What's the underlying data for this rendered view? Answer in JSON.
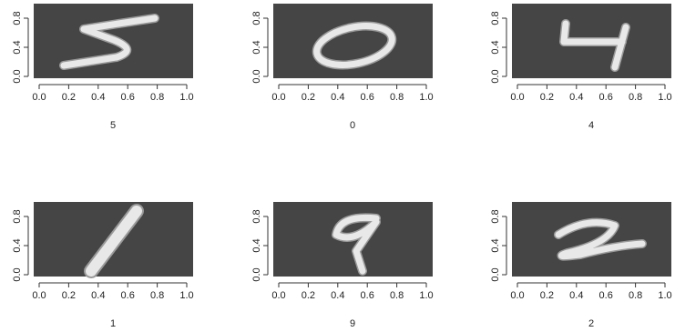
{
  "chart_data": [
    {
      "type": "image",
      "xlabel": "5",
      "xlim": [
        0,
        1
      ],
      "ylim": [
        0,
        1
      ],
      "xticks": [
        {
          "value": 0,
          "label": "0.0"
        },
        {
          "value": 0.2,
          "label": "0.2"
        },
        {
          "value": 0.4,
          "label": "0.4"
        },
        {
          "value": 0.6,
          "label": "0.6"
        },
        {
          "value": 0.8,
          "label": "0.8"
        },
        {
          "value": 1,
          "label": "1.0"
        }
      ],
      "yticks": [
        {
          "value": 0,
          "label": "0.0"
        },
        {
          "value": 0.4,
          "label": "0.4"
        },
        {
          "value": 0.8,
          "label": "0.8"
        }
      ]
    },
    {
      "type": "image",
      "xlabel": "0",
      "xlim": [
        0,
        1
      ],
      "ylim": [
        0,
        1
      ],
      "xticks": [
        {
          "value": 0,
          "label": "0.0"
        },
        {
          "value": 0.2,
          "label": "0.2"
        },
        {
          "value": 0.4,
          "label": "0.4"
        },
        {
          "value": 0.6,
          "label": "0.6"
        },
        {
          "value": 0.8,
          "label": "0.8"
        },
        {
          "value": 1,
          "label": "1.0"
        }
      ],
      "yticks": [
        {
          "value": 0,
          "label": "0.0"
        },
        {
          "value": 0.4,
          "label": "0.4"
        },
        {
          "value": 0.8,
          "label": "0.8"
        }
      ]
    },
    {
      "type": "image",
      "xlabel": "4",
      "xlim": [
        0,
        1
      ],
      "ylim": [
        0,
        1
      ],
      "xticks": [
        {
          "value": 0,
          "label": "0.0"
        },
        {
          "value": 0.2,
          "label": "0.2"
        },
        {
          "value": 0.4,
          "label": "0.4"
        },
        {
          "value": 0.6,
          "label": "0.6"
        },
        {
          "value": 0.8,
          "label": "0.8"
        },
        {
          "value": 1,
          "label": "1.0"
        }
      ],
      "yticks": [
        {
          "value": 0,
          "label": "0.0"
        },
        {
          "value": 0.4,
          "label": "0.4"
        },
        {
          "value": 0.8,
          "label": "0.8"
        }
      ]
    },
    {
      "type": "image",
      "xlabel": "1",
      "xlim": [
        0,
        1
      ],
      "ylim": [
        0,
        1
      ],
      "xticks": [
        {
          "value": 0,
          "label": "0.0"
        },
        {
          "value": 0.2,
          "label": "0.2"
        },
        {
          "value": 0.4,
          "label": "0.4"
        },
        {
          "value": 0.6,
          "label": "0.6"
        },
        {
          "value": 0.8,
          "label": "0.8"
        },
        {
          "value": 1,
          "label": "1.0"
        }
      ],
      "yticks": [
        {
          "value": 0,
          "label": "0.0"
        },
        {
          "value": 0.4,
          "label": "0.4"
        },
        {
          "value": 0.8,
          "label": "0.8"
        }
      ]
    },
    {
      "type": "image",
      "xlabel": "9",
      "xlim": [
        0,
        1
      ],
      "ylim": [
        0,
        1
      ],
      "xticks": [
        {
          "value": 0,
          "label": "0.0"
        },
        {
          "value": 0.2,
          "label": "0.2"
        },
        {
          "value": 0.4,
          "label": "0.4"
        },
        {
          "value": 0.6,
          "label": "0.6"
        },
        {
          "value": 0.8,
          "label": "0.8"
        },
        {
          "value": 1,
          "label": "1.0"
        }
      ],
      "yticks": [
        {
          "value": 0,
          "label": "0.0"
        },
        {
          "value": 0.4,
          "label": "0.4"
        },
        {
          "value": 0.8,
          "label": "0.8"
        }
      ]
    },
    {
      "type": "image",
      "xlabel": "2",
      "xlim": [
        0,
        1
      ],
      "ylim": [
        0,
        1
      ],
      "xticks": [
        {
          "value": 0,
          "label": "0.0"
        },
        {
          "value": 0.2,
          "label": "0.2"
        },
        {
          "value": 0.4,
          "label": "0.4"
        },
        {
          "value": 0.6,
          "label": "0.6"
        },
        {
          "value": 0.8,
          "label": "0.8"
        },
        {
          "value": 1,
          "label": "1.0"
        }
      ],
      "yticks": [
        {
          "value": 0,
          "label": "0.0"
        },
        {
          "value": 0.4,
          "label": "0.4"
        },
        {
          "value": 0.8,
          "label": "0.8"
        }
      ]
    }
  ]
}
